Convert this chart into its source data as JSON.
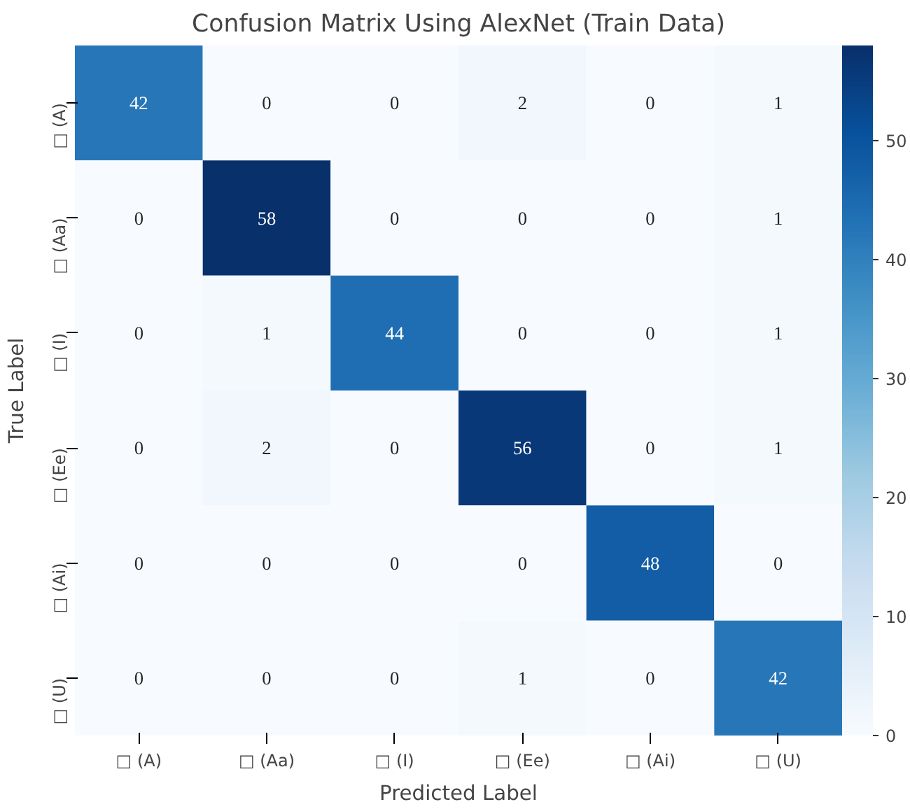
{
  "chart_data": {
    "type": "heatmap",
    "title": "Confusion Matrix Using AlexNet (Train Data)",
    "xlabel": "Predicted Label",
    "ylabel": "True Label",
    "categories": [
      "□ (A)",
      "□ (Aa)",
      "□ (I)",
      "□ (Ee)",
      "□ (Ai)",
      "□ (U)"
    ],
    "y_categories": [
      "□ (A)",
      "□ (Aa)",
      "□ (I)",
      "□ (Ee)",
      "□ (Ai)",
      "□ (U)"
    ],
    "cells": [
      [
        42,
        0,
        0,
        2,
        0,
        1
      ],
      [
        0,
        58,
        0,
        0,
        0,
        1
      ],
      [
        0,
        1,
        44,
        0,
        0,
        1
      ],
      [
        0,
        2,
        0,
        56,
        0,
        1
      ],
      [
        0,
        0,
        0,
        0,
        48,
        0
      ],
      [
        0,
        0,
        0,
        1,
        0,
        42
      ]
    ],
    "clim": [
      0,
      58
    ],
    "cticks": [
      0,
      10,
      20,
      30,
      40,
      50
    ],
    "data_labels": true
  }
}
